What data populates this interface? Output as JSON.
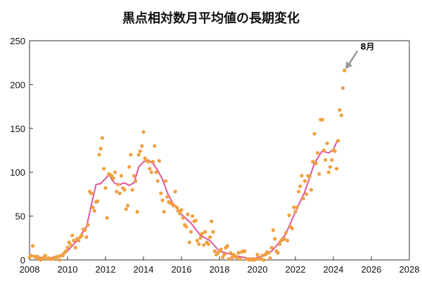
{
  "chart_data": {
    "type": "scatter",
    "title": "黒点相対数月平均値の長期変化",
    "xlabel": "",
    "ylabel": "",
    "xlim": [
      2008,
      2028
    ],
    "ylim": [
      0,
      250
    ],
    "x_ticks": [
      2008,
      2010,
      2012,
      2014,
      2016,
      2018,
      2020,
      2022,
      2024,
      2026,
      2028
    ],
    "y_ticks": [
      0,
      50,
      100,
      150,
      200,
      250
    ],
    "grid": false,
    "annotation": {
      "text": "8月",
      "x": 2024.6,
      "y": 216
    },
    "series": [
      {
        "type": "scatter",
        "color": "#f0a040",
        "points": [
          [
            2008.0,
            3
          ],
          [
            2008.08,
            5
          ],
          [
            2008.17,
            16
          ],
          [
            2008.25,
            4
          ],
          [
            2008.33,
            3
          ],
          [
            2008.42,
            4
          ],
          [
            2008.5,
            1
          ],
          [
            2008.58,
            0
          ],
          [
            2008.67,
            2
          ],
          [
            2008.75,
            3
          ],
          [
            2008.83,
            5
          ],
          [
            2008.92,
            1
          ],
          [
            2009.0,
            2
          ],
          [
            2009.08,
            1
          ],
          [
            2009.17,
            1
          ],
          [
            2009.25,
            1
          ],
          [
            2009.33,
            3
          ],
          [
            2009.42,
            3
          ],
          [
            2009.5,
            4
          ],
          [
            2009.58,
            0
          ],
          [
            2009.67,
            5
          ],
          [
            2009.75,
            5
          ],
          [
            2009.83,
            8
          ],
          [
            2009.92,
            10
          ],
          [
            2010.0,
            14
          ],
          [
            2010.08,
            20
          ],
          [
            2010.17,
            17
          ],
          [
            2010.25,
            28
          ],
          [
            2010.33,
            22
          ],
          [
            2010.42,
            14
          ],
          [
            2010.5,
            24
          ],
          [
            2010.58,
            22
          ],
          [
            2010.67,
            26
          ],
          [
            2010.75,
            28
          ],
          [
            2010.83,
            35
          ],
          [
            2010.92,
            34
          ],
          [
            2011.0,
            26
          ],
          [
            2011.08,
            40
          ],
          [
            2011.17,
            78
          ],
          [
            2011.25,
            76
          ],
          [
            2011.33,
            60
          ],
          [
            2011.42,
            56
          ],
          [
            2011.5,
            66
          ],
          [
            2011.58,
            67
          ],
          [
            2011.67,
            120
          ],
          [
            2011.75,
            127
          ],
          [
            2011.83,
            139
          ],
          [
            2011.92,
            104
          ],
          [
            2012.0,
            82
          ],
          [
            2012.08,
            48
          ],
          [
            2012.17,
            98
          ],
          [
            2012.25,
            97
          ],
          [
            2012.33,
            96
          ],
          [
            2012.42,
            93
          ],
          [
            2012.5,
            100
          ],
          [
            2012.58,
            78
          ],
          [
            2012.67,
            86
          ],
          [
            2012.75,
            76
          ],
          [
            2012.83,
            96
          ],
          [
            2012.92,
            82
          ],
          [
            2013.0,
            80
          ],
          [
            2013.08,
            58
          ],
          [
            2013.17,
            62
          ],
          [
            2013.25,
            106
          ],
          [
            2013.33,
            120
          ],
          [
            2013.42,
            80
          ],
          [
            2013.5,
            96
          ],
          [
            2013.58,
            90
          ],
          [
            2013.67,
            55
          ],
          [
            2013.75,
            120
          ],
          [
            2013.83,
            124
          ],
          [
            2013.92,
            130
          ],
          [
            2014.0,
            146
          ],
          [
            2014.08,
            116
          ],
          [
            2014.17,
            113
          ],
          [
            2014.25,
            112
          ],
          [
            2014.33,
            104
          ],
          [
            2014.42,
            100
          ],
          [
            2014.5,
            112
          ],
          [
            2014.58,
            130
          ],
          [
            2014.67,
            100
          ],
          [
            2014.75,
            90
          ],
          [
            2014.83,
            113
          ],
          [
            2014.92,
            76
          ],
          [
            2015.0,
            68
          ],
          [
            2015.08,
            55
          ],
          [
            2015.17,
            90
          ],
          [
            2015.25,
            72
          ],
          [
            2015.33,
            66
          ],
          [
            2015.42,
            65
          ],
          [
            2015.5,
            64
          ],
          [
            2015.58,
            62
          ],
          [
            2015.67,
            78
          ],
          [
            2015.75,
            60
          ],
          [
            2015.83,
            56
          ],
          [
            2015.92,
            53
          ],
          [
            2016.0,
            57
          ],
          [
            2016.08,
            48
          ],
          [
            2016.17,
            40
          ],
          [
            2016.25,
            38
          ],
          [
            2016.33,
            52
          ],
          [
            2016.42,
            20
          ],
          [
            2016.5,
            32
          ],
          [
            2016.58,
            50
          ],
          [
            2016.67,
            44
          ],
          [
            2016.75,
            45
          ],
          [
            2016.83,
            22
          ],
          [
            2016.92,
            18
          ],
          [
            2017.0,
            25
          ],
          [
            2017.08,
            30
          ],
          [
            2017.17,
            17
          ],
          [
            2017.25,
            32
          ],
          [
            2017.33,
            20
          ],
          [
            2017.42,
            18
          ],
          [
            2017.5,
            26
          ],
          [
            2017.58,
            44
          ],
          [
            2017.67,
            32
          ],
          [
            2017.75,
            10
          ],
          [
            2017.83,
            6
          ],
          [
            2017.92,
            8
          ],
          [
            2018.0,
            10
          ],
          [
            2018.08,
            12
          ],
          [
            2018.17,
            3
          ],
          [
            2018.25,
            6
          ],
          [
            2018.33,
            14
          ],
          [
            2018.42,
            16
          ],
          [
            2018.5,
            1
          ],
          [
            2018.58,
            8
          ],
          [
            2018.67,
            3
          ],
          [
            2018.75,
            6
          ],
          [
            2018.83,
            4
          ],
          [
            2018.92,
            3
          ],
          [
            2019.0,
            8
          ],
          [
            2019.08,
            1
          ],
          [
            2019.17,
            9
          ],
          [
            2019.25,
            10
          ],
          [
            2019.33,
            10
          ],
          [
            2019.42,
            1
          ],
          [
            2019.5,
            1
          ],
          [
            2019.58,
            0
          ],
          [
            2019.67,
            1
          ],
          [
            2019.75,
            0
          ],
          [
            2019.83,
            0
          ],
          [
            2019.92,
            1
          ],
          [
            2020.0,
            6
          ],
          [
            2020.08,
            1
          ],
          [
            2020.17,
            1
          ],
          [
            2020.25,
            5
          ],
          [
            2020.33,
            0
          ],
          [
            2020.42,
            6
          ],
          [
            2020.5,
            9
          ],
          [
            2020.58,
            8
          ],
          [
            2020.67,
            2
          ],
          [
            2020.75,
            14
          ],
          [
            2020.83,
            34
          ],
          [
            2020.92,
            24
          ],
          [
            2021.0,
            10
          ],
          [
            2021.08,
            8
          ],
          [
            2021.17,
            18
          ],
          [
            2021.25,
            22
          ],
          [
            2021.33,
            23
          ],
          [
            2021.42,
            24
          ],
          [
            2021.5,
            31
          ],
          [
            2021.58,
            22
          ],
          [
            2021.67,
            51
          ],
          [
            2021.75,
            38
          ],
          [
            2021.83,
            36
          ],
          [
            2021.92,
            60
          ],
          [
            2022.0,
            55
          ],
          [
            2022.08,
            60
          ],
          [
            2022.17,
            78
          ],
          [
            2022.25,
            84
          ],
          [
            2022.33,
            96
          ],
          [
            2022.42,
            70
          ],
          [
            2022.5,
            90
          ],
          [
            2022.58,
            75
          ],
          [
            2022.67,
            96
          ],
          [
            2022.75,
            95
          ],
          [
            2022.83,
            80
          ],
          [
            2022.92,
            112
          ],
          [
            2023.0,
            144
          ],
          [
            2023.08,
            110
          ],
          [
            2023.17,
            122
          ],
          [
            2023.25,
            98
          ],
          [
            2023.33,
            160
          ],
          [
            2023.42,
            160
          ],
          [
            2023.5,
            125
          ],
          [
            2023.58,
            114
          ],
          [
            2023.67,
            133
          ],
          [
            2023.75,
            100
          ],
          [
            2023.83,
            106
          ],
          [
            2023.92,
            114
          ],
          [
            2024.0,
            125
          ],
          [
            2024.08,
            124
          ],
          [
            2024.17,
            104
          ],
          [
            2024.25,
            136
          ],
          [
            2024.33,
            171
          ],
          [
            2024.42,
            165
          ],
          [
            2024.5,
            196
          ],
          [
            2024.58,
            216
          ]
        ]
      },
      {
        "type": "line",
        "color": "#e0559a",
        "points": [
          [
            2008.0,
            6
          ],
          [
            2008.5,
            3
          ],
          [
            2009.0,
            2
          ],
          [
            2009.5,
            4
          ],
          [
            2010.0,
            10
          ],
          [
            2010.5,
            22
          ],
          [
            2011.0,
            38
          ],
          [
            2011.5,
            86
          ],
          [
            2011.75,
            87
          ],
          [
            2012.0,
            93
          ],
          [
            2012.2,
            97
          ],
          [
            2012.35,
            91
          ],
          [
            2012.5,
            87
          ],
          [
            2012.75,
            86
          ],
          [
            2013.0,
            88
          ],
          [
            2013.25,
            85
          ],
          [
            2013.5,
            88
          ],
          [
            2013.75,
            106
          ],
          [
            2014.0,
            112
          ],
          [
            2014.25,
            114
          ],
          [
            2014.5,
            110
          ],
          [
            2014.75,
            102
          ],
          [
            2015.0,
            92
          ],
          [
            2015.25,
            77
          ],
          [
            2015.5,
            66
          ],
          [
            2015.75,
            60
          ],
          [
            2016.0,
            52
          ],
          [
            2016.5,
            42
          ],
          [
            2017.0,
            28
          ],
          [
            2017.5,
            22
          ],
          [
            2018.0,
            10
          ],
          [
            2018.5,
            7
          ],
          [
            2019.0,
            4
          ],
          [
            2019.5,
            2
          ],
          [
            2019.9,
            2
          ],
          [
            2020.25,
            4
          ],
          [
            2020.75,
            10
          ],
          [
            2021.0,
            16
          ],
          [
            2021.5,
            30
          ],
          [
            2022.0,
            55
          ],
          [
            2022.5,
            78
          ],
          [
            2023.0,
            110
          ],
          [
            2023.4,
            124
          ],
          [
            2023.75,
            122
          ],
          [
            2024.0,
            126
          ],
          [
            2024.2,
            136
          ]
        ]
      }
    ]
  }
}
